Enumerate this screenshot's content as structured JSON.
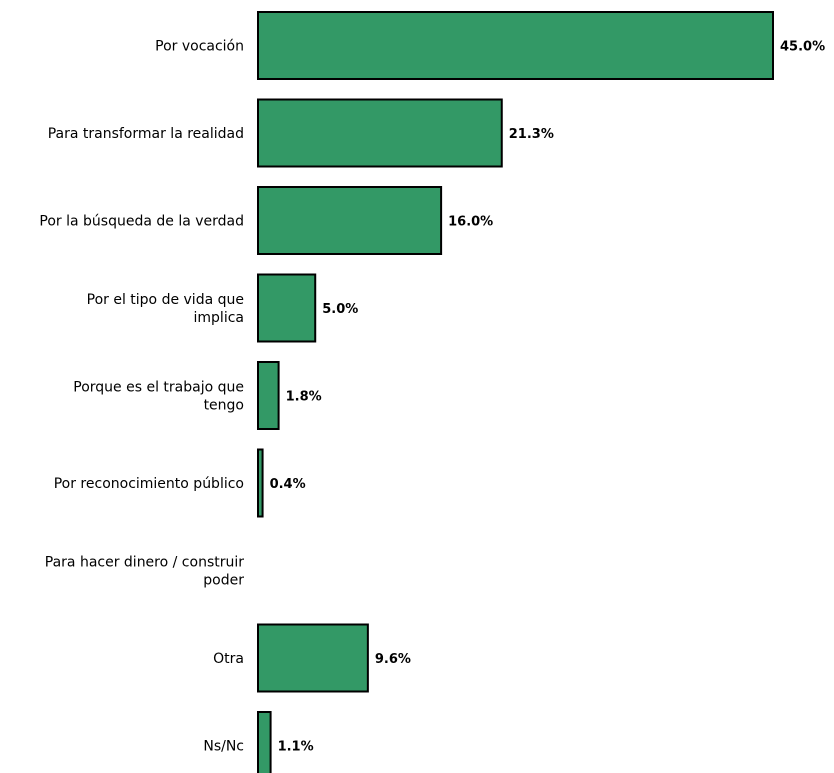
{
  "chart_data": {
    "type": "bar",
    "orientation": "horizontal",
    "categories": [
      "Por vocación",
      "Para transformar la realidad",
      "Por la búsqueda de la verdad",
      "Por el tipo de vida que implica",
      "Porque es el trabajo que tengo",
      "Por reconocimiento público",
      "Para hacer dinero / construir poder",
      "Otra",
      "Ns/Nc"
    ],
    "category_lines": [
      [
        "Por vocación"
      ],
      [
        "Para transformar la realidad"
      ],
      [
        "Por la búsqueda de la verdad"
      ],
      [
        "Por el tipo de vida que",
        "implica"
      ],
      [
        "Porque es el trabajo que",
        "tengo"
      ],
      [
        "Por reconocimiento público"
      ],
      [
        "Para hacer dinero / construir",
        "poder"
      ],
      [
        "Otra"
      ],
      [
        "Ns/Nc"
      ]
    ],
    "values": [
      45.0,
      21.3,
      16.0,
      5.0,
      1.8,
      0.4,
      0.0,
      9.6,
      1.1
    ],
    "value_labels": [
      "45.0%",
      "21.3%",
      "16.0%",
      "5.0%",
      "1.8%",
      "0.4%",
      "",
      "9.6%",
      "1.1%"
    ],
    "bar_color": "#339966",
    "xlim": [
      0,
      45
    ],
    "grid": false,
    "legend": "none"
  }
}
